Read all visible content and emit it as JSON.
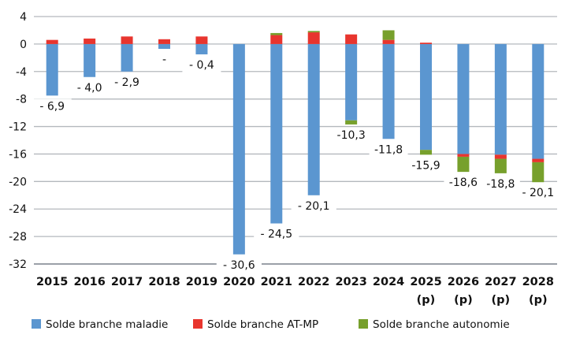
{
  "chart_data": {
    "type": "bar",
    "stacked": true,
    "categories": [
      "2015",
      "2016",
      "2017",
      "2018",
      "2019",
      "2020",
      "2021",
      "2022",
      "2023",
      "2024",
      "2025\n(p)",
      "2026\n(p)",
      "2027\n(p)",
      "2028\n(p)"
    ],
    "series": [
      {
        "name": "Solde branche maladie",
        "color": "#5b96d0",
        "values": [
          -7.5,
          -4.8,
          -4.0,
          -0.7,
          -1.5,
          -30.6,
          -26.1,
          -22.0,
          -11.1,
          -13.8,
          -15.4,
          -16.0,
          -16.1,
          -16.7
        ]
      },
      {
        "name": "Solde branche AT-MP",
        "color": "#e8352e",
        "values": [
          0.6,
          0.8,
          1.1,
          0.7,
          1.1,
          0.0,
          1.3,
          1.7,
          1.4,
          0.6,
          0.2,
          -0.4,
          -0.6,
          -0.5
        ]
      },
      {
        "name": "Solde branche autonomie",
        "color": "#77a02c",
        "values": [
          0,
          0,
          0,
          0,
          0,
          0,
          0.3,
          0.2,
          -0.6,
          1.4,
          -0.7,
          -2.2,
          -2.1,
          -2.9
        ]
      }
    ],
    "total_labels": [
      "- 6,9",
      "- 4,0",
      "- 2,9",
      "-",
      "- 0,4",
      "- 30,6",
      "- 24,5",
      "- 20,1",
      "-10,3",
      "-11,8",
      "-15,9",
      "-18,6",
      "-18,8",
      "- 20,1"
    ],
    "ylim": [
      -32,
      4
    ],
    "yticks": [
      4,
      0,
      -4,
      -8,
      -12,
      -16,
      -20,
      -24,
      -28,
      -32
    ],
    "grid": true,
    "legend": "bottom",
    "xlabel": "",
    "ylabel": ""
  }
}
